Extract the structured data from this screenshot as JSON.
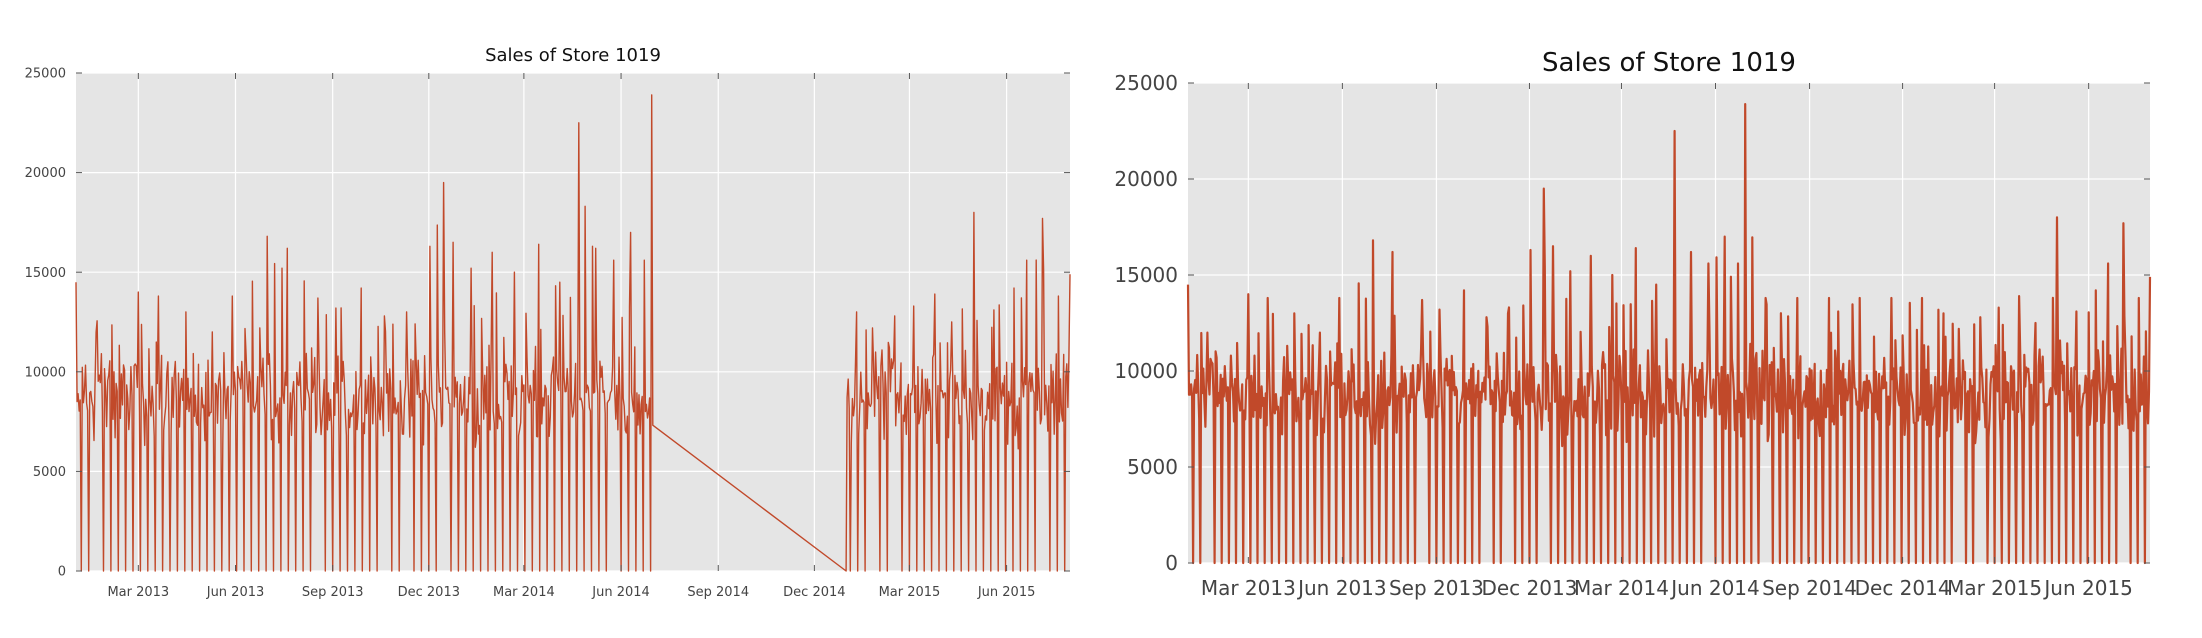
{
  "chart_data": [
    {
      "type": "line",
      "title": "Sales of Store 1019",
      "xlabel": "",
      "ylabel": "",
      "ylim": [
        0,
        25000
      ],
      "xlim": [
        "2013-01-01",
        "2015-07-31"
      ],
      "yticks": [
        0,
        5000,
        10000,
        15000,
        20000,
        25000
      ],
      "ytick_labels": [
        "0",
        "5000",
        "10000",
        "15000",
        "20000",
        "25000"
      ],
      "xticks": [
        "2013-03-01",
        "2013-06-01",
        "2013-09-01",
        "2013-12-01",
        "2014-03-01",
        "2014-06-01",
        "2014-09-01",
        "2014-12-01",
        "2015-03-01",
        "2015-06-01"
      ],
      "xtick_labels": [
        "Mar 2013",
        "Jun 2013",
        "Sep 2013",
        "Dec 2013",
        "Mar 2014",
        "Jun 2014",
        "Sep 2014",
        "Dec 2014",
        "Mar 2015",
        "Jun 2015"
      ],
      "grid": true,
      "color": "#c1492a",
      "background": "#e5e5e5",
      "gap": [
        "2014-07-01",
        "2014-12-31"
      ],
      "series": [
        {
          "name": "",
          "x": [
            "2013-01-01",
            "2013-01-20",
            "2013-03-01",
            "2013-03-20",
            "2013-04-15",
            "2013-05-10",
            "2013-05-29",
            "2013-07-01",
            "2013-07-20",
            "2013-08-18",
            "2013-09-04",
            "2013-09-28",
            "2013-10-20",
            "2013-11-10",
            "2013-12-02",
            "2013-12-15",
            "2013-12-24",
            "2014-01-10",
            "2014-01-30",
            "2014-02-20",
            "2014-03-15",
            "2014-04-04",
            "2014-04-22",
            "2014-05-08",
            "2014-05-25",
            "2014-06-10",
            "2014-06-23",
            "2014-06-30",
            "2014-12-31",
            "2015-01-10",
            "2015-01-25",
            "2015-02-15",
            "2015-03-05",
            "2015-03-25",
            "2015-04-10",
            "2015-05-01",
            "2015-05-20",
            "2015-06-08",
            "2015-06-20",
            "2015-07-05",
            "2015-07-20",
            "2015-07-31"
          ],
          "y": [
            14500,
            12000,
            14000,
            13800,
            13000,
            12000,
            13800,
            16800,
            16200,
            13700,
            13200,
            14200,
            12800,
            13000,
            16300,
            19500,
            16500,
            15200,
            16000,
            15000,
            16400,
            14500,
            22500,
            16200,
            15600,
            17000,
            15600,
            23900,
            0,
            13000,
            12200,
            12800,
            13300,
            13900,
            12500,
            18000,
            13100,
            14200,
            15600,
            17700,
            13800,
            14900
          ],
          "daily_low": 6000,
          "daily_mid": 9000
        }
      ]
    },
    {
      "type": "line",
      "title": "Sales of Store 1019",
      "xlabel": "",
      "ylabel": "",
      "ylim": [
        0,
        25000
      ],
      "xlim": [
        "2013-01-01",
        "2015-07-31"
      ],
      "yticks": [
        0,
        5000,
        10000,
        15000,
        20000,
        25000
      ],
      "ytick_labels": [
        "0",
        "5000",
        "10000",
        "15000",
        "20000",
        "25000"
      ],
      "xticks": [
        "2013-03-01",
        "2013-06-01",
        "2013-09-01",
        "2013-12-01",
        "2014-03-01",
        "2014-06-01",
        "2014-09-01",
        "2014-12-01",
        "2015-03-01",
        "2015-06-01"
      ],
      "xtick_labels": [
        "Mar 2013",
        "Jun 2013",
        "Sep 2013",
        "Dec 2013",
        "Mar 2014",
        "Jun 2014",
        "Sep 2014",
        "Dec 2014",
        "Mar 2015",
        "Jun 2015"
      ],
      "grid": true,
      "color": "#c1492a",
      "background": "#e5e5e5",
      "series": [
        {
          "name": "",
          "x": [
            "2013-01-01",
            "2013-01-20",
            "2013-03-01",
            "2013-03-20",
            "2013-04-15",
            "2013-05-10",
            "2013-05-29",
            "2013-07-01",
            "2013-07-20",
            "2013-08-18",
            "2013-09-04",
            "2013-09-28",
            "2013-10-20",
            "2013-11-10",
            "2013-12-02",
            "2013-12-15",
            "2013-12-24",
            "2014-01-10",
            "2014-01-30",
            "2014-02-20",
            "2014-03-15",
            "2014-04-04",
            "2014-04-22",
            "2014-05-08",
            "2014-05-25",
            "2014-06-10",
            "2014-06-23",
            "2014-06-30",
            "2014-07-20",
            "2014-08-20",
            "2014-09-20",
            "2014-10-20",
            "2014-11-20",
            "2014-12-20",
            "2015-01-10",
            "2015-01-25",
            "2015-02-15",
            "2015-03-05",
            "2015-03-25",
            "2015-04-10",
            "2015-05-01",
            "2015-05-20",
            "2015-06-08",
            "2015-06-20",
            "2015-07-05",
            "2015-07-20",
            "2015-07-31"
          ],
          "y": [
            14500,
            12000,
            14000,
            13800,
            13000,
            12000,
            13800,
            16800,
            16200,
            13700,
            13200,
            14200,
            12800,
            13000,
            16300,
            19500,
            16500,
            15200,
            16000,
            15000,
            16400,
            14500,
            22500,
            16200,
            15600,
            17000,
            15600,
            23900,
            13800,
            13800,
            13800,
            13800,
            13800,
            13800,
            13000,
            12200,
            12800,
            13300,
            13900,
            12500,
            18000,
            13100,
            14200,
            15600,
            17700,
            13800,
            14900
          ],
          "daily_low": 6000,
          "daily_mid": 9000
        }
      ]
    }
  ]
}
